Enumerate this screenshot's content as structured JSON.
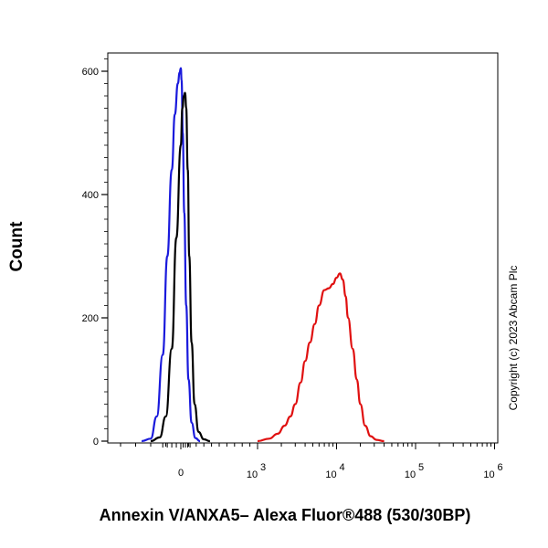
{
  "chart_data": {
    "type": "line",
    "title": "",
    "xlabel": "Annexin V/ANXA5– Alexa Fluor®488 (530/30BP)",
    "ylabel": "Count",
    "ylim": [
      0,
      650
    ],
    "y_ticks": [
      {
        "value": 0,
        "label": "0"
      },
      {
        "value": 200,
        "label": "200"
      },
      {
        "value": 400,
        "label": "400"
      },
      {
        "value": 600,
        "label": "600"
      }
    ],
    "x_ticks": [
      {
        "value": 0,
        "label": "0"
      },
      {
        "value": 1000,
        "base": "10",
        "exp": "3"
      },
      {
        "value": 10000,
        "base": "10",
        "exp": "4"
      },
      {
        "value": 100000,
        "base": "10",
        "exp": "5"
      },
      {
        "value": 1000000,
        "base": "10",
        "exp": "6"
      }
    ],
    "annotation": "Copyright (c) 2023 Abcam Plc",
    "series": [
      {
        "name": "blue",
        "color": "#1a1adc",
        "x": [
          -260,
          -200,
          -160,
          -120,
          -90,
          -60,
          -40,
          -20,
          -8,
          0,
          10,
          25,
          45,
          70,
          100,
          140,
          190,
          250
        ],
        "y": [
          0,
          4,
          40,
          140,
          300,
          440,
          530,
          580,
          598,
          605,
          585,
          500,
          370,
          220,
          100,
          30,
          5,
          0
        ]
      },
      {
        "name": "black",
        "color": "#000000",
        "x": [
          -200,
          -140,
          -100,
          -60,
          -30,
          0,
          20,
          40,
          55,
          70,
          90,
          110,
          140,
          180,
          230,
          300,
          380
        ],
        "y": [
          0,
          6,
          40,
          150,
          330,
          480,
          540,
          560,
          565,
          540,
          440,
          300,
          160,
          60,
          15,
          3,
          0
        ]
      },
      {
        "name": "red",
        "color": "#e01010",
        "x": [
          1000,
          1400,
          1800,
          2200,
          2600,
          3000,
          3500,
          4000,
          4600,
          5300,
          6000,
          7000,
          8000,
          9000,
          10000,
          11000,
          12000,
          13000,
          14000,
          16000,
          18000,
          20000,
          23000,
          27000,
          32000,
          40000
        ],
        "y": [
          0,
          4,
          12,
          25,
          40,
          60,
          95,
          130,
          160,
          190,
          220,
          245,
          248,
          255,
          265,
          272,
          262,
          235,
          200,
          150,
          100,
          60,
          25,
          8,
          2,
          0
        ]
      }
    ]
  }
}
